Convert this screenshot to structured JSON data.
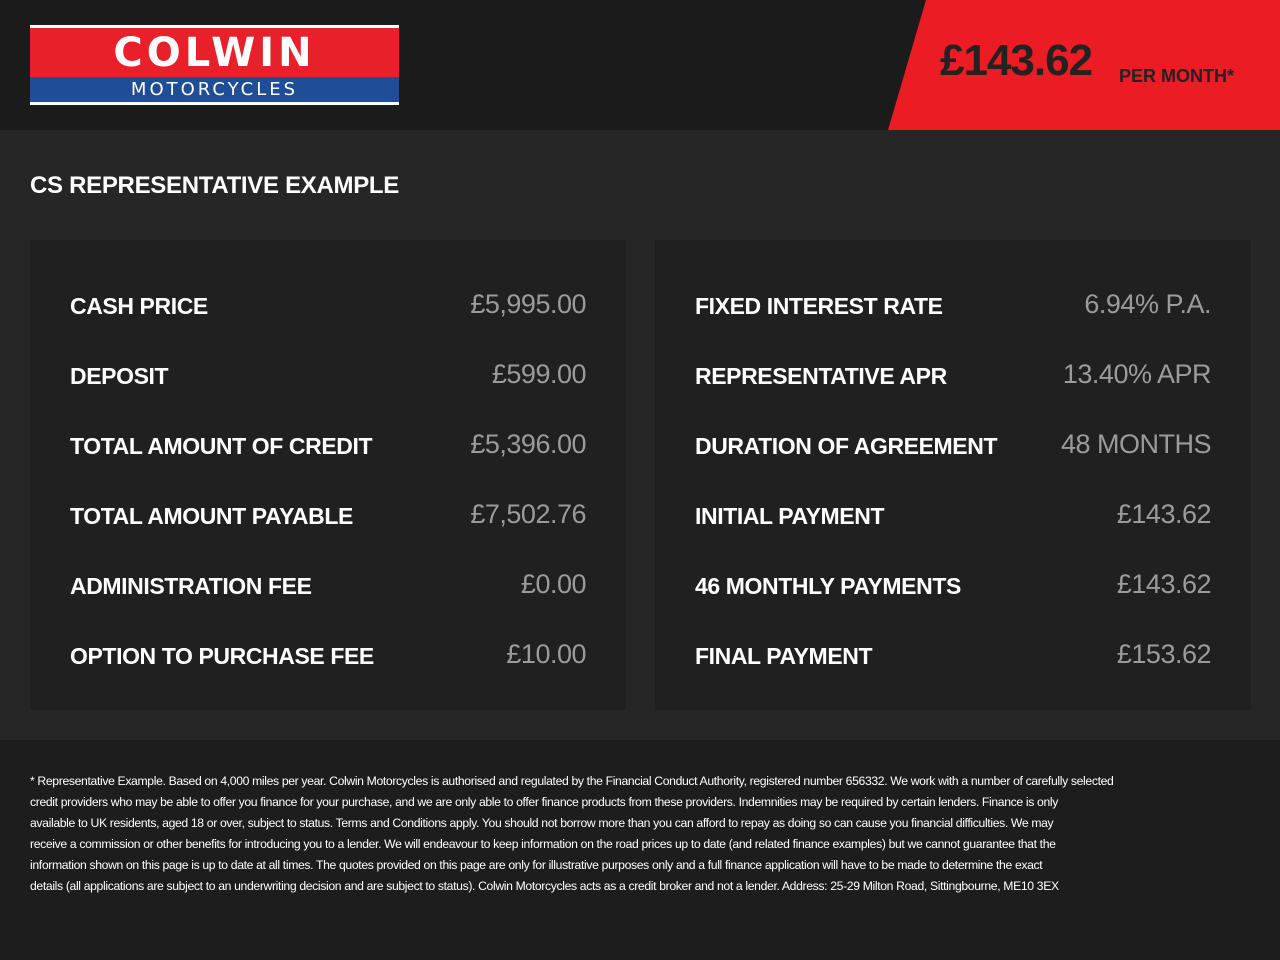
{
  "header": {
    "logo": {
      "line1": "COLWIN",
      "line2": "MOTORCYCLES",
      "colors": {
        "red": "#e8202a",
        "blue": "#1f4e96"
      }
    },
    "price": "£143.62",
    "per_month": "PER MONTH*",
    "banner_color": "#ec1c24"
  },
  "main": {
    "title": "CS REPRESENTATIVE EXAMPLE",
    "left": [
      {
        "label": "CASH PRICE",
        "value": "£5,995.00"
      },
      {
        "label": "DEPOSIT",
        "value": "£599.00"
      },
      {
        "label": "TOTAL AMOUNT OF CREDIT",
        "value": "£5,396.00"
      },
      {
        "label": "TOTAL AMOUNT PAYABLE",
        "value": "£7,502.76"
      },
      {
        "label": "ADMINISTRATION FEE",
        "value": "£0.00"
      },
      {
        "label": "OPTION TO PURCHASE FEE",
        "value": "£10.00"
      }
    ],
    "right": [
      {
        "label": "FIXED INTEREST RATE",
        "value": "6.94% P.A."
      },
      {
        "label": "REPRESENTATIVE APR",
        "value": "13.40% APR"
      },
      {
        "label": "DURATION OF AGREEMENT",
        "value": "48 MONTHS"
      },
      {
        "label": "INITIAL PAYMENT",
        "value": "£143.62"
      },
      {
        "label": "46 MONTHLY PAYMENTS",
        "value": "£143.62"
      },
      {
        "label": "FINAL PAYMENT",
        "value": "£153.62"
      }
    ]
  },
  "disclaimer": [
    "* Representative Example. Based on 4,000 miles per year. Colwin Motorcycles is authorised and regulated by the Financial Conduct Authority, registered number 656332. We work with a number of carefully selected",
    "credit providers who may be able to offer you finance for your purchase, and we are only able to offer finance products from these providers. Indemnities may be required by certain lenders. Finance is only",
    "available to UK residents, aged 18 or over, subject to status. Terms and Conditions apply. You should not borrow more than you can afford to repay as doing so can cause you financial difficulties. We may",
    "receive a commission or other benefits for introducing you to a lender. We will endeavour to keep information on the road prices up to date (and related finance examples) but we cannot guarantee that the",
    "information shown on this page is up to date at all times. The quotes provided on this page are only for illustrative purposes only and a full finance application will have to be made to determine the exact",
    "details (all applications are subject to an underwriting decision and are subject to status). Colwin Motorcycles acts as a credit broker and not a lender. Address:  25-29 Milton Road, Sittingbourne, ME10 3EX"
  ]
}
